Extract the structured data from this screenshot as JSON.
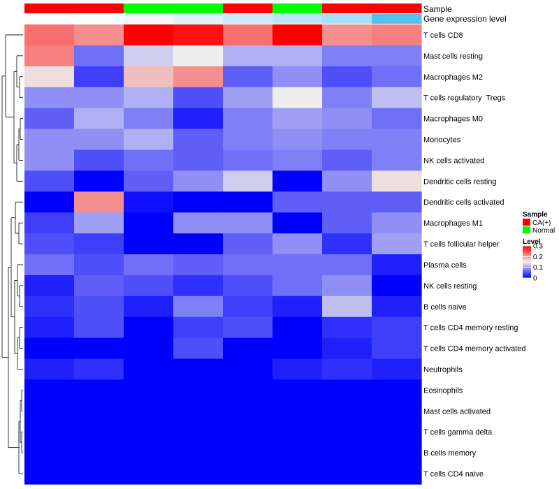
{
  "chart_data": {
    "type": "heatmap",
    "title": "",
    "annotation_titles": {
      "sample": "Sample",
      "expression": "Gene expression level"
    },
    "sample_annotation": [
      "CA(+)",
      "CA(+)",
      "Normal",
      "Normal",
      "CA(+)",
      "Normal",
      "CA(+)",
      "CA(+)"
    ],
    "expression_annotation": [
      0.0,
      0.05,
      0.1,
      0.2,
      0.3,
      0.4,
      0.5,
      1.0
    ],
    "rows": [
      "T cells CD8",
      "Mast cells resting",
      "Macrophages M2",
      "T cells regulatory  Tregs",
      "Macrophages M0",
      "Monocytes",
      "NK cells activated",
      "Dendritic cells resting",
      "Dendritic cells activated",
      "Macrophages M1",
      "T cells follicular helper",
      "Plasma cells",
      "NK cells resting",
      "B cells naive",
      "T cells CD4 memory resting",
      "T cells CD4 memory activated",
      "Neutrophils",
      "Eosinophils",
      "Mast cells activated",
      "T cells gamma delta",
      "B cells memory",
      "T cells CD4 naive"
    ],
    "values": [
      [
        0.23,
        0.21,
        0.3,
        0.29,
        0.23,
        0.3,
        0.21,
        0.22
      ],
      [
        0.22,
        0.07,
        0.13,
        0.15,
        0.11,
        0.11,
        0.08,
        0.08
      ],
      [
        0.16,
        0.04,
        0.18,
        0.21,
        0.06,
        0.09,
        0.05,
        0.07
      ],
      [
        0.09,
        0.09,
        0.11,
        0.05,
        0.1,
        0.15,
        0.08,
        0.12
      ],
      [
        0.06,
        0.11,
        0.08,
        0.02,
        0.08,
        0.1,
        0.09,
        0.07
      ],
      [
        0.09,
        0.09,
        0.11,
        0.06,
        0.08,
        0.09,
        0.08,
        0.08
      ],
      [
        0.09,
        0.05,
        0.07,
        0.06,
        0.07,
        0.08,
        0.06,
        0.08
      ],
      [
        0.05,
        0.0,
        0.06,
        0.09,
        0.13,
        0.0,
        0.09,
        0.16
      ],
      [
        0.0,
        0.21,
        0.01,
        0.0,
        0.0,
        0.06,
        0.06,
        0.06
      ],
      [
        0.04,
        0.1,
        0.0,
        0.09,
        0.09,
        0.0,
        0.06,
        0.09
      ],
      [
        0.05,
        0.04,
        0.0,
        0.0,
        0.06,
        0.09,
        0.03,
        0.1
      ],
      [
        0.07,
        0.05,
        0.07,
        0.06,
        0.07,
        0.07,
        0.07,
        0.02
      ],
      [
        0.02,
        0.06,
        0.05,
        0.03,
        0.05,
        0.07,
        0.09,
        0.0
      ],
      [
        0.03,
        0.05,
        0.02,
        0.08,
        0.04,
        0.02,
        0.12,
        0.02
      ],
      [
        0.02,
        0.05,
        0.0,
        0.04,
        0.05,
        0.0,
        0.03,
        0.04
      ],
      [
        0.0,
        0.0,
        0.0,
        0.05,
        0.0,
        0.0,
        0.02,
        0.04
      ],
      [
        0.02,
        0.03,
        0.0,
        0.0,
        0.0,
        0.02,
        0.03,
        0.02
      ],
      [
        0.0,
        0.0,
        0.0,
        0.0,
        0.0,
        0.0,
        0.0,
        0.0
      ],
      [
        0.0,
        0.0,
        0.0,
        0.0,
        0.0,
        0.0,
        0.0,
        0.0
      ],
      [
        0.0,
        0.0,
        0.0,
        0.0,
        0.0,
        0.0,
        0.0,
        0.0
      ],
      [
        0.0,
        0.0,
        0.0,
        0.0,
        0.0,
        0.0,
        0.0,
        0.0
      ],
      [
        0.0,
        0.0,
        0.0,
        0.0,
        0.0,
        0.0,
        0.0,
        0.0
      ]
    ],
    "value_range": [
      0,
      0.3
    ],
    "color_scale": {
      "low": "#0000ff",
      "mid": "#eeeeee",
      "high": "#ff0000",
      "mid_value": 0.15
    },
    "legend": {
      "sample_title": "Sample",
      "sample_entries": [
        {
          "label": "CA(+)",
          "color": "#ff0000"
        },
        {
          "label": "Normal",
          "color": "#00ff00"
        }
      ],
      "level_title": "Level",
      "level_ticks": [
        {
          "value": 0.3,
          "label": "0.3"
        },
        {
          "value": 0.2,
          "label": "0.2"
        },
        {
          "value": 0.1,
          "label": "0.1"
        },
        {
          "value": 0.0,
          "label": "0"
        }
      ],
      "position": "right"
    },
    "expression_colors": {
      "low": "#ffffff",
      "high": "#55c0ee"
    },
    "row_dendrogram": true
  }
}
